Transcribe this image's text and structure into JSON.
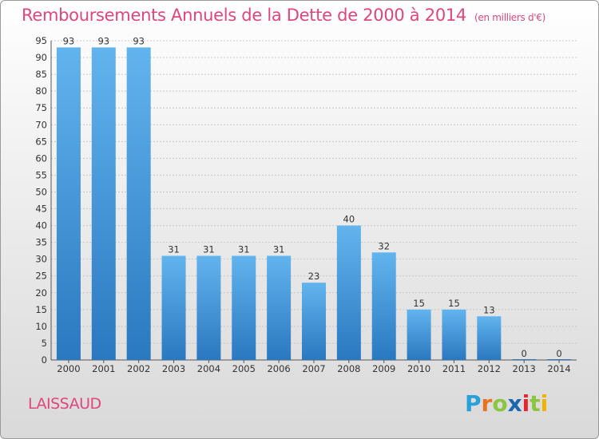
{
  "title": "Remboursements Annuels de la Dette de 2000 à 2014",
  "unit_note": "(en milliers d'€)",
  "commune": "LAISSAUD",
  "brand": {
    "letters": [
      "P",
      "r",
      "o",
      "x",
      "i",
      "t",
      "i"
    ],
    "colors": [
      "#2aa0d8",
      "#e8731f",
      "#8cc63f",
      "#1a66b0",
      "#e3262f",
      "#8cc63f",
      "#f0b400"
    ]
  },
  "colors": {
    "title": "#e0457c",
    "bar_top": "#62b4ee",
    "bar_bottom": "#2a78c0",
    "grid": "#c8c8c8"
  },
  "chart_data": {
    "type": "bar",
    "categories": [
      "2000",
      "2001",
      "2002",
      "2003",
      "2004",
      "2005",
      "2006",
      "2007",
      "2008",
      "2009",
      "2010",
      "2011",
      "2012",
      "2013",
      "2014"
    ],
    "values": [
      93,
      93,
      93,
      31,
      31,
      31,
      31,
      23,
      40,
      32,
      15,
      15,
      13,
      0,
      0
    ],
    "data_labels": [
      "93",
      "93",
      "93",
      "31",
      "31",
      "31",
      "31",
      "23",
      "40",
      "32",
      "15",
      "15",
      "13",
      "0",
      "0"
    ],
    "ylim": [
      0,
      95
    ],
    "yticks": [
      0,
      5,
      10,
      15,
      20,
      25,
      30,
      35,
      40,
      45,
      50,
      55,
      60,
      65,
      70,
      75,
      80,
      85,
      90,
      95
    ],
    "grid": true,
    "xlabel": "",
    "ylabel": ""
  }
}
